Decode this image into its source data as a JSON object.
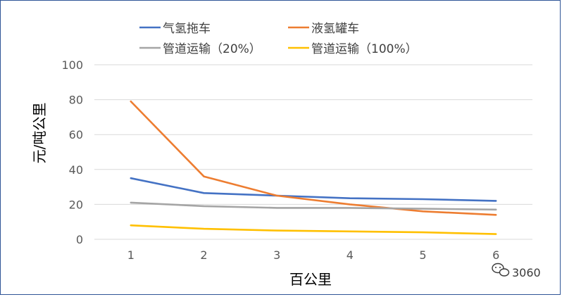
{
  "chart_data": {
    "type": "line",
    "title": "",
    "xlabel": "百公里",
    "ylabel": "元/吨公里",
    "x": [
      1,
      2,
      3,
      4,
      5,
      6
    ],
    "x_tick_labels": [
      "1",
      "2",
      "3",
      "4",
      "5",
      "6"
    ],
    "y_tick_labels": [
      "0",
      "20",
      "40",
      "60",
      "80",
      "100"
    ],
    "ylim": [
      0,
      100
    ],
    "grid": "horizontal",
    "legend_placement": "top",
    "series": [
      {
        "name": "气氢拖车",
        "color": "#4472c4",
        "values": [
          35,
          26.5,
          25,
          23.5,
          23,
          22
        ]
      },
      {
        "name": "液氢罐车",
        "color": "#ed7d31",
        "values": [
          79,
          36,
          25,
          20,
          16,
          14
        ]
      },
      {
        "name": "管道运输（20%）",
        "color": "#a5a5a5",
        "values": [
          21,
          19,
          18,
          18,
          17.5,
          17
        ]
      },
      {
        "name": "管道运输（100%）",
        "color": "#ffc000",
        "values": [
          8,
          6,
          5,
          4.5,
          4,
          3
        ]
      }
    ]
  },
  "watermark": {
    "icon": "wechat-icon",
    "text": "3060"
  }
}
